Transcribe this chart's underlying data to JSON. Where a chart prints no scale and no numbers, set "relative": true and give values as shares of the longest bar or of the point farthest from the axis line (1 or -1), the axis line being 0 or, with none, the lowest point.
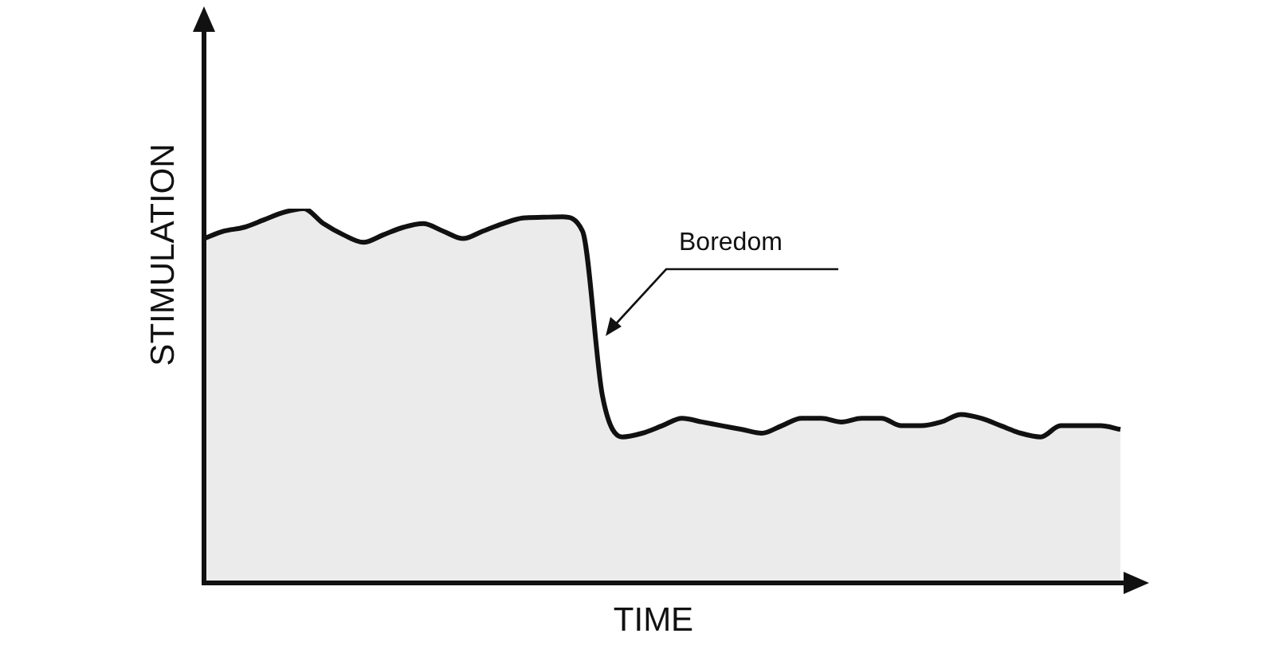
{
  "chart_data": {
    "type": "area",
    "relative": true,
    "xlabel": "TIME",
    "ylabel": "STIMULATION",
    "annotations": [
      "Boredom"
    ],
    "categories": [
      null,
      null,
      null,
      null,
      null,
      null,
      null,
      null,
      null,
      null,
      null,
      null,
      null,
      null,
      null,
      null,
      null,
      null,
      null,
      null,
      null,
      null,
      null,
      null,
      null,
      null,
      null,
      null,
      null,
      null,
      null,
      null,
      null,
      null,
      null,
      null,
      null,
      null,
      null,
      null,
      null,
      null,
      null,
      null,
      null,
      null,
      null
    ],
    "series": [
      {
        "color": "#111111",
        "values": [
          0.92,
          0.94,
          0.95,
          0.97,
          0.99,
          1,
          0.96,
          0.93,
          0.91,
          0.93,
          0.95,
          0.96,
          0.94,
          0.92,
          0.94,
          0.96,
          0.975,
          0.977,
          0.978,
          0.94,
          0.5,
          0.39,
          0.4,
          0.42,
          0.44,
          0.43,
          0.42,
          0.41,
          0.4,
          0.42,
          0.44,
          0.44,
          0.43,
          0.44,
          0.44,
          0.42,
          0.42,
          0.43,
          0.45,
          0.44,
          0.42,
          0.4,
          0.39,
          0.42,
          0.42,
          0.42,
          0.41
        ]
      }
    ],
    "legend": false
  }
}
